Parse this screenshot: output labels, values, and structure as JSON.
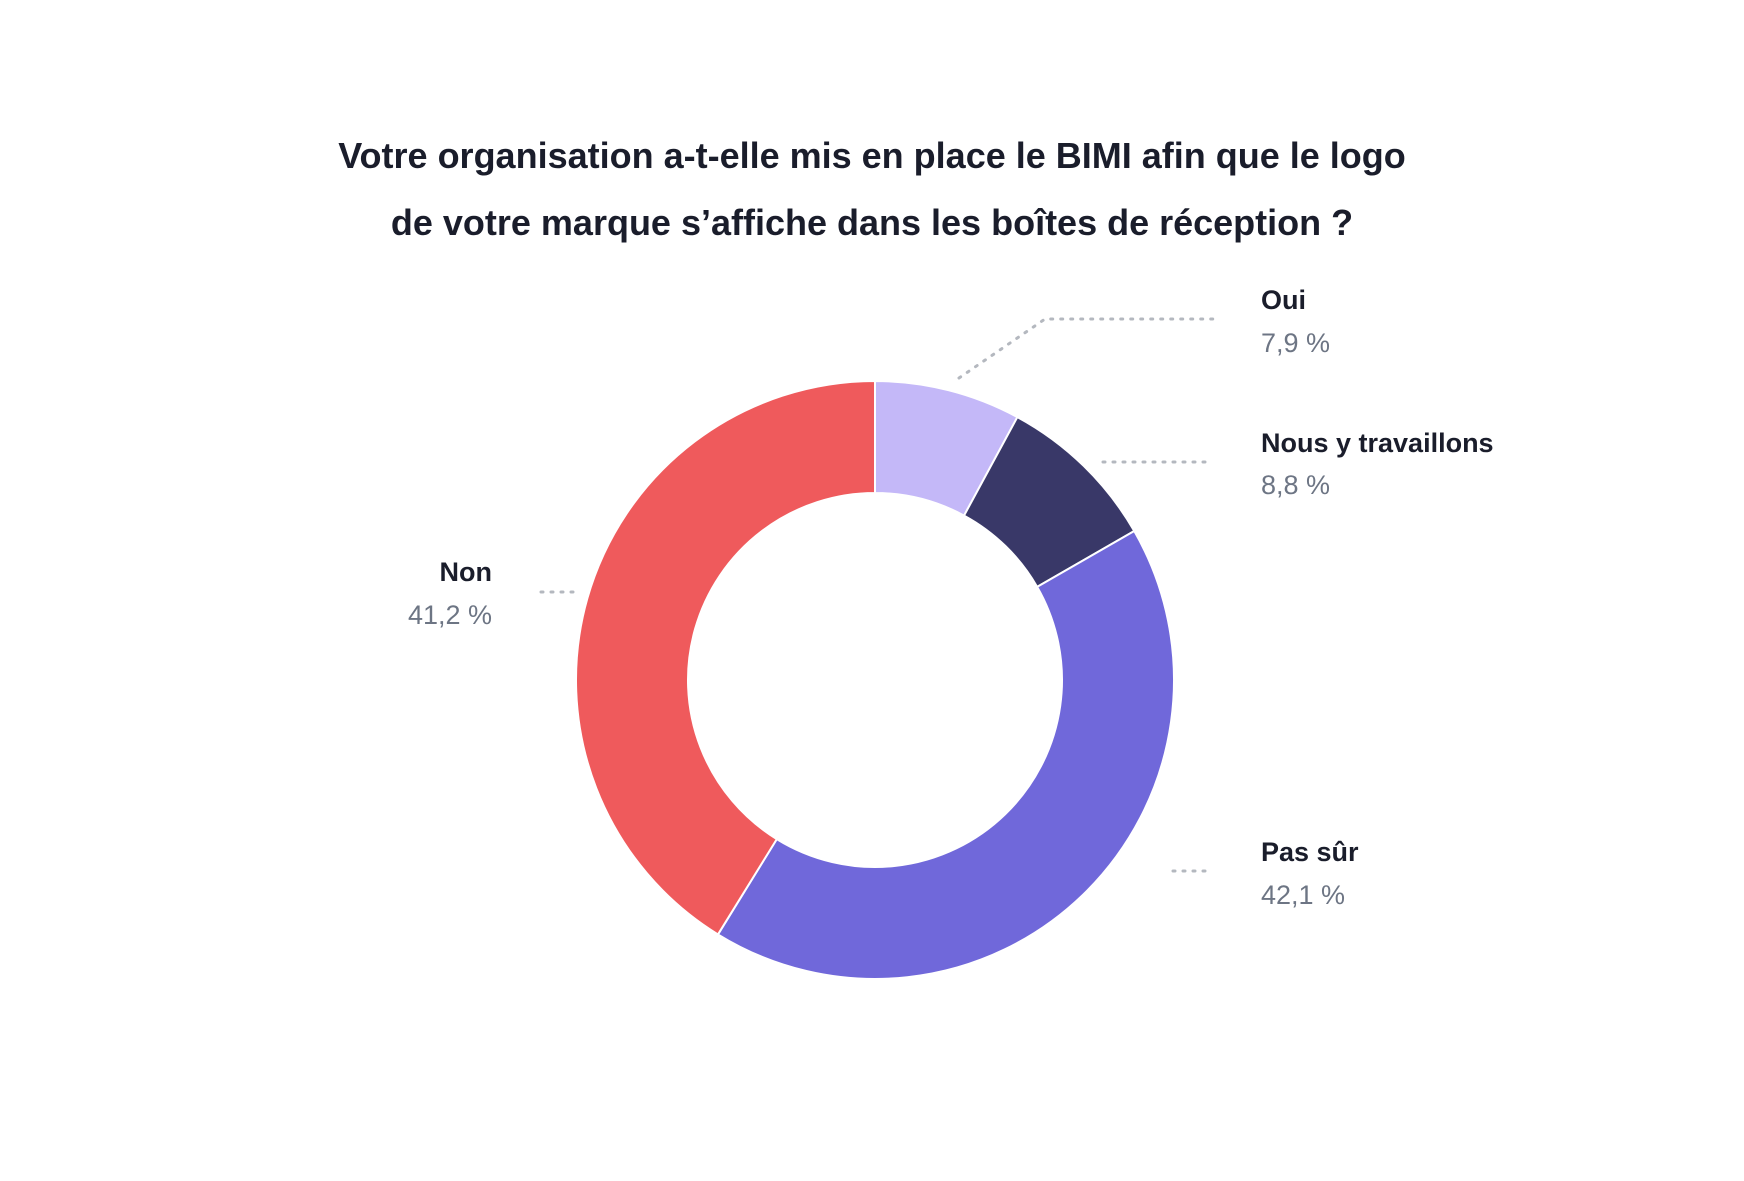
{
  "chart_data": {
    "type": "pie",
    "title_lines": [
      "Votre organisation a-t-elle mis en place le BIMI afin que le logo",
      "de votre marque s’affiche dans les boîtes de réception ?"
    ],
    "donut": true,
    "slices": [
      {
        "label": "Oui",
        "value": 7.9,
        "value_label": "7,9 %",
        "color": "#c4b8f8"
      },
      {
        "label": "Nous y travaillons",
        "value": 8.8,
        "value_label": "8,8 %",
        "color": "#393868"
      },
      {
        "label": "Pas sûr",
        "value": 42.1,
        "value_label": "42,1 %",
        "color": "#7068da"
      },
      {
        "label": "Non",
        "value": 41.2,
        "value_label": "41,2 %",
        "color": "#ef5a5c"
      }
    ]
  }
}
